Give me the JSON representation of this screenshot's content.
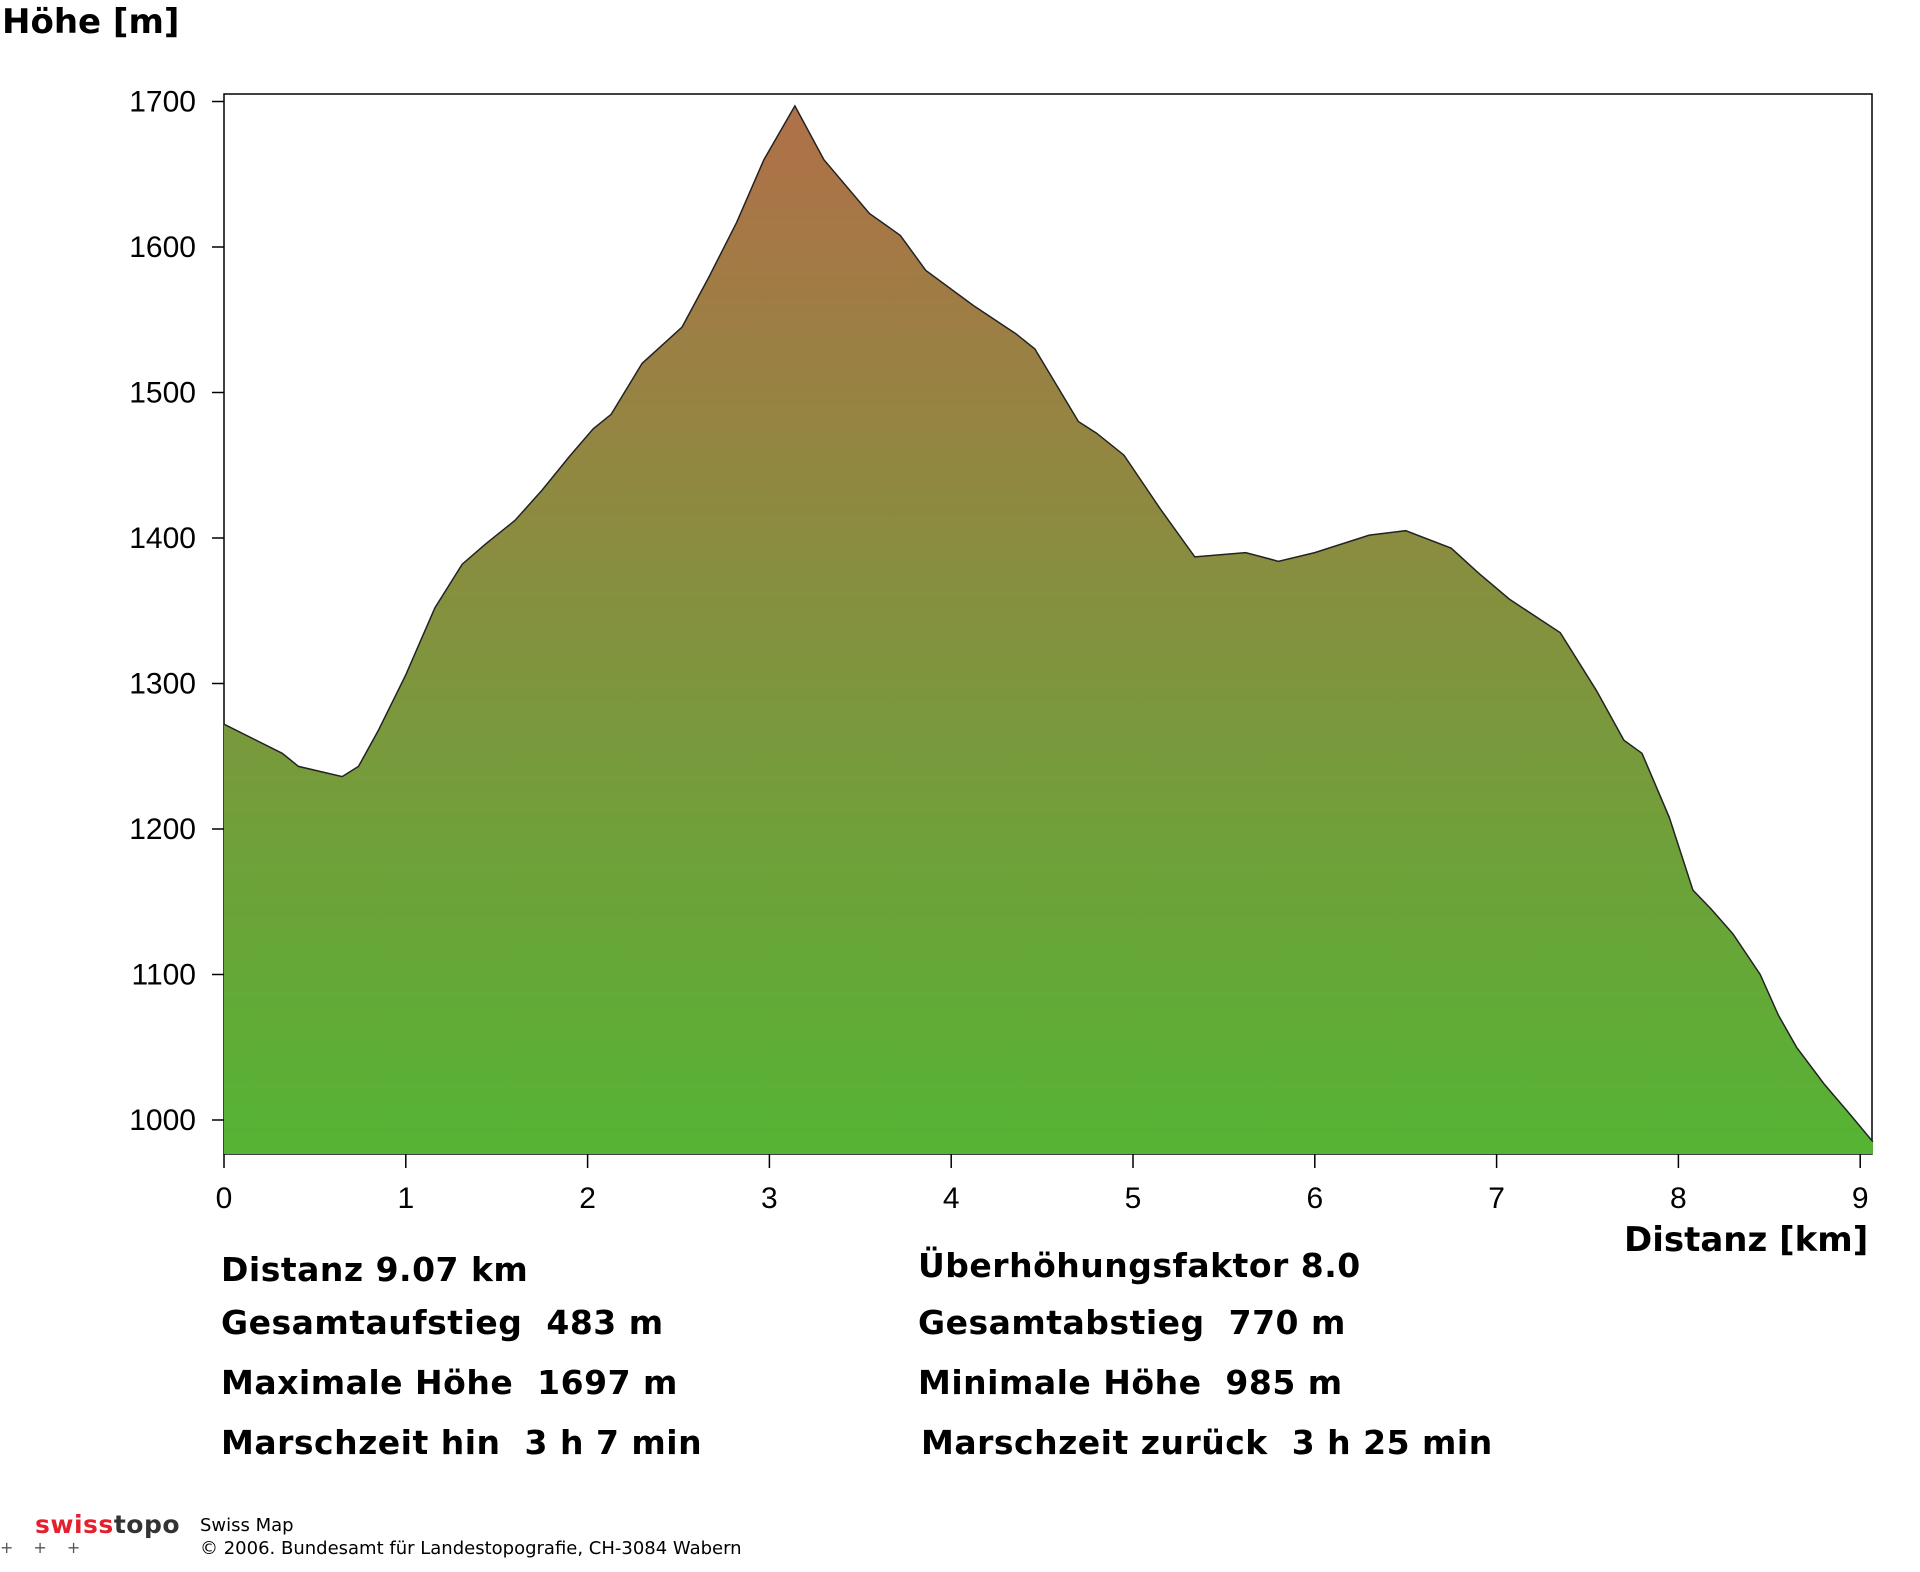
{
  "chart_data": {
    "type": "area",
    "ylabel": "Höhe [m]",
    "xlabel": "Distanz [km]",
    "xlim": [
      0,
      9.07
    ],
    "ylim": [
      975,
      1705
    ],
    "xticks": [
      0,
      1,
      2,
      3,
      4,
      5,
      6,
      7,
      8,
      9
    ],
    "yticks": [
      1000,
      1100,
      1200,
      1300,
      1400,
      1500,
      1600,
      1700
    ],
    "x": [
      0,
      0.32,
      0.41,
      0.65,
      0.74,
      0.85,
      1.0,
      1.16,
      1.31,
      1.44,
      1.6,
      1.75,
      1.9,
      2.03,
      2.13,
      2.3,
      2.52,
      2.67,
      2.82,
      2.97,
      3.14,
      3.3,
      3.55,
      3.72,
      3.86,
      4.12,
      4.36,
      4.46,
      4.7,
      4.8,
      4.95,
      5.15,
      5.34,
      5.62,
      5.8,
      6.0,
      6.3,
      6.5,
      6.75,
      6.9,
      7.07,
      7.24,
      7.35,
      7.55,
      7.7,
      7.8,
      7.95,
      8.08,
      8.18,
      8.3,
      8.45,
      8.55,
      8.65,
      8.8,
      8.95,
      9.07
    ],
    "y": [
      1272,
      1252,
      1243,
      1236,
      1243,
      1268,
      1306,
      1352,
      1382,
      1396,
      1412,
      1433,
      1456,
      1475,
      1485,
      1520,
      1545,
      1580,
      1617,
      1660,
      1697,
      1660,
      1623,
      1608,
      1584,
      1560,
      1540,
      1530,
      1480,
      1472,
      1457,
      1420,
      1387,
      1390,
      1384,
      1390,
      1402,
      1405,
      1393,
      1376,
      1358,
      1344,
      1335,
      1295,
      1261,
      1252,
      1208,
      1158,
      1145,
      1128,
      1100,
      1072,
      1050,
      1025,
      1003,
      985
    ],
    "fill_top_color": "#b07048",
    "fill_bottom_color": "#55b434",
    "grid": false,
    "legend": "none"
  },
  "stats": {
    "distanz": "Distanz 9.07 km",
    "ueberhoehung": "Überhöhungsfaktor 8.0",
    "aufstieg": "Gesamtaufstieg  483 m",
    "abstieg": "Gesamtabstieg  770 m",
    "max": "Maximale Höhe  1697 m",
    "min": "Minimale Höhe  985 m",
    "zeit_hin": "Marschzeit hin  3 h 7 min",
    "zeit_zurueck": "Marschzeit zurück  3 h 25 min"
  },
  "footer": {
    "logo_swiss": "swiss",
    "logo_topo": "topo",
    "product": "Swiss Map",
    "copyright": "© 2006. Bundesamt für Landestopografie, CH-3084 Wabern"
  }
}
